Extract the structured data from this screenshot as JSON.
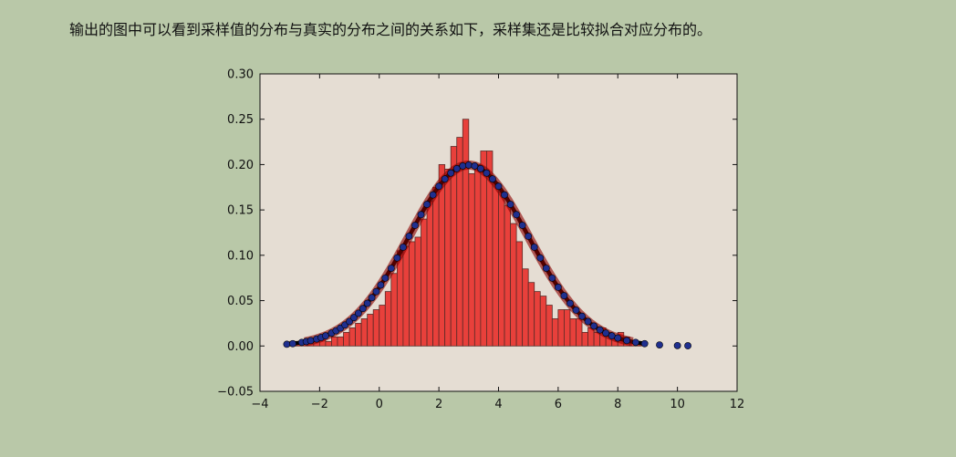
{
  "caption": "输出的图中可以看到采样值的分布与真实的分布之间的关系如下，采样集还是比较拟合对应分布的。",
  "chart_data": {
    "type": "bar",
    "xlim": [
      -4,
      12
    ],
    "ylim": [
      -0.05,
      0.3
    ],
    "xticks": [
      -4,
      -2,
      0,
      2,
      4,
      6,
      8,
      10,
      12
    ],
    "xtick_labels": [
      "−4",
      "−2",
      "0",
      "2",
      "4",
      "6",
      "8",
      "10",
      "12"
    ],
    "yticks": [
      -0.05,
      0.0,
      0.05,
      0.1,
      0.15,
      0.2,
      0.25,
      0.3
    ],
    "ytick_labels": [
      "−0.05",
      "0.00",
      "0.05",
      "0.10",
      "0.15",
      "0.20",
      "0.25",
      "0.30"
    ],
    "grid": false,
    "background": "#e5ddd3",
    "histogram": {
      "bin_width": 0.2,
      "bin_starts": [
        -3.0,
        -2.8,
        -2.6,
        -2.4,
        -2.2,
        -2.0,
        -1.8,
        -1.6,
        -1.4,
        -1.2,
        -1.0,
        -0.8,
        -0.6,
        -0.4,
        -0.2,
        0.0,
        0.2,
        0.4,
        0.6,
        0.8,
        1.0,
        1.2,
        1.4,
        1.6,
        1.8,
        2.0,
        2.2,
        2.4,
        2.6,
        2.8,
        3.0,
        3.2,
        3.4,
        3.6,
        3.8,
        4.0,
        4.2,
        4.4,
        4.6,
        4.8,
        5.0,
        5.2,
        5.4,
        5.6,
        5.8,
        6.0,
        6.2,
        6.4,
        6.6,
        6.8,
        7.0,
        7.2,
        7.4,
        7.6,
        7.8,
        8.0,
        8.2,
        8.4,
        8.6
      ],
      "values": [
        0.005,
        0.005,
        0.005,
        0.005,
        0.005,
        0.01,
        0.005,
        0.01,
        0.01,
        0.015,
        0.02,
        0.025,
        0.03,
        0.035,
        0.04,
        0.045,
        0.06,
        0.08,
        0.105,
        0.11,
        0.115,
        0.12,
        0.14,
        0.16,
        0.175,
        0.2,
        0.195,
        0.22,
        0.23,
        0.25,
        0.19,
        0.2,
        0.215,
        0.215,
        0.18,
        0.17,
        0.155,
        0.135,
        0.115,
        0.085,
        0.07,
        0.06,
        0.055,
        0.045,
        0.03,
        0.04,
        0.04,
        0.03,
        0.03,
        0.015,
        0.02,
        0.015,
        0.02,
        0.015,
        0.01,
        0.015,
        0.01,
        0.005,
        0.005
      ],
      "fill": "#e8403b",
      "edge": "#5a2a26"
    },
    "density_curve": {
      "type": "line",
      "mean": 3.0,
      "std": 2.0,
      "x_range": [
        -3.1,
        9.0
      ],
      "color": "#000000"
    },
    "pdf_overlay": {
      "type": "line",
      "mean": 3.0,
      "std": 2.0,
      "x_range": [
        -2.5,
        8.5
      ],
      "color": "#8b0000"
    },
    "scatter": {
      "type": "scatter",
      "mean": 3.0,
      "std": 2.0,
      "x": [
        -3.1,
        -2.9,
        -2.6,
        -2.45,
        -2.3,
        -2.1,
        -1.95,
        -1.8,
        -1.6,
        -1.45,
        -1.3,
        -1.15,
        -1.0,
        -0.85,
        -0.7,
        -0.55,
        -0.4,
        -0.25,
        -0.1,
        0.05,
        0.2,
        0.4,
        0.6,
        0.8,
        1.0,
        1.2,
        1.4,
        1.6,
        1.8,
        2.0,
        2.2,
        2.4,
        2.6,
        2.8,
        3.0,
        3.2,
        3.4,
        3.6,
        3.8,
        4.0,
        4.2,
        4.4,
        4.6,
        4.8,
        5.0,
        5.2,
        5.4,
        5.6,
        5.8,
        6.0,
        6.2,
        6.4,
        6.6,
        6.8,
        7.0,
        7.2,
        7.4,
        7.6,
        7.8,
        8.0,
        8.3,
        8.6,
        8.9,
        9.4,
        10.0,
        10.35
      ],
      "color": "#1f2f8f"
    }
  }
}
